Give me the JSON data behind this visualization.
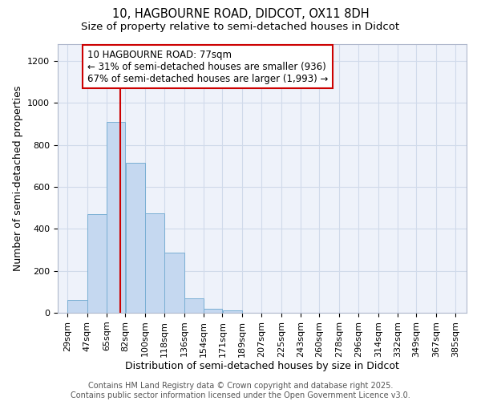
{
  "title_line1": "10, HAGBOURNE ROAD, DIDCOT, OX11 8DH",
  "title_line2": "Size of property relative to semi-detached houses in Didcot",
  "xlabel": "Distribution of semi-detached houses by size in Didcot",
  "ylabel": "Number of semi-detached properties",
  "bar_left_edges": [
    29,
    47,
    65,
    82,
    100,
    118,
    136,
    154,
    171,
    189,
    207,
    225,
    243,
    260,
    278,
    296,
    314,
    332,
    349,
    367
  ],
  "bar_widths": [
    18,
    18,
    17,
    18,
    18,
    18,
    18,
    17,
    18,
    18,
    18,
    18,
    17,
    18,
    18,
    18,
    18,
    17,
    18,
    18
  ],
  "bar_heights": [
    60,
    470,
    910,
    715,
    475,
    285,
    70,
    20,
    10,
    0,
    0,
    0,
    0,
    0,
    0,
    0,
    0,
    0,
    0,
    0
  ],
  "bar_color": "#c5d8f0",
  "bar_edgecolor": "#7aafd4",
  "x_tick_labels": [
    "29sqm",
    "47sqm",
    "65sqm",
    "82sqm",
    "100sqm",
    "118sqm",
    "136sqm",
    "154sqm",
    "171sqm",
    "189sqm",
    "207sqm",
    "225sqm",
    "243sqm",
    "260sqm",
    "278sqm",
    "296sqm",
    "314sqm",
    "332sqm",
    "349sqm",
    "367sqm",
    "385sqm"
  ],
  "x_tick_positions": [
    29,
    47,
    65,
    82,
    100,
    118,
    136,
    154,
    171,
    189,
    207,
    225,
    243,
    260,
    278,
    296,
    314,
    332,
    349,
    367,
    385
  ],
  "ytick_values": [
    0,
    200,
    400,
    600,
    800,
    1000,
    1200
  ],
  "ylim": [
    0,
    1280
  ],
  "xlim": [
    20,
    395
  ],
  "red_line_x": 77,
  "annotation_title": "10 HAGBOURNE ROAD: 77sqm",
  "annotation_line1": "← 31% of semi-detached houses are smaller (936)",
  "annotation_line2": "67% of semi-detached houses are larger (1,993) →",
  "annotation_box_color": "#ffffff",
  "annotation_box_edgecolor": "#cc0000",
  "red_line_color": "#cc0000",
  "grid_color": "#d0daea",
  "background_color": "#eef2fa",
  "footer_line1": "Contains HM Land Registry data © Crown copyright and database right 2025.",
  "footer_line2": "Contains public sector information licensed under the Open Government Licence v3.0.",
  "title_fontsize": 10.5,
  "subtitle_fontsize": 9.5,
  "axis_label_fontsize": 9,
  "tick_fontsize": 8,
  "annotation_fontsize": 8.5,
  "footer_fontsize": 7
}
